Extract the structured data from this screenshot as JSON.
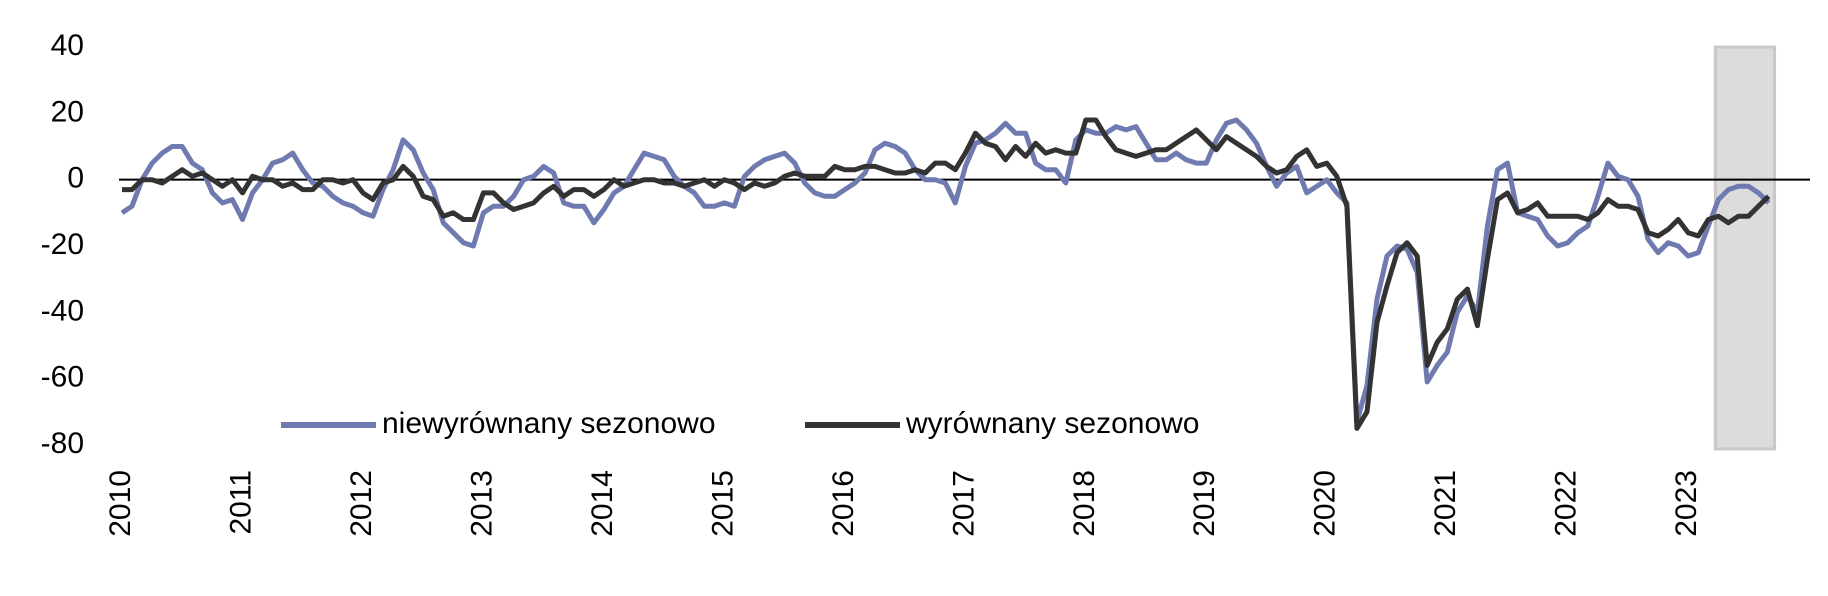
{
  "chart_data": {
    "type": "line",
    "categories": [
      "2010",
      null,
      null,
      null,
      null,
      null,
      null,
      null,
      null,
      null,
      null,
      null,
      "2011",
      null,
      null,
      null,
      null,
      null,
      null,
      null,
      null,
      null,
      null,
      null,
      "2012",
      null,
      null,
      null,
      null,
      null,
      null,
      null,
      null,
      null,
      null,
      null,
      "2013",
      null,
      null,
      null,
      null,
      null,
      null,
      null,
      null,
      null,
      null,
      null,
      "2014",
      null,
      null,
      null,
      null,
      null,
      null,
      null,
      null,
      null,
      null,
      null,
      "2015",
      null,
      null,
      null,
      null,
      null,
      null,
      null,
      null,
      null,
      null,
      null,
      "2016",
      null,
      null,
      null,
      null,
      null,
      null,
      null,
      null,
      null,
      null,
      null,
      "2017",
      null,
      null,
      null,
      null,
      null,
      null,
      null,
      null,
      null,
      null,
      null,
      "2018",
      null,
      null,
      null,
      null,
      null,
      null,
      null,
      null,
      null,
      null,
      null,
      "2019",
      null,
      null,
      null,
      null,
      null,
      null,
      null,
      null,
      null,
      null,
      null,
      "2020",
      null,
      null,
      null,
      null,
      null,
      null,
      null,
      null,
      null,
      null,
      null,
      "2021",
      null,
      null,
      null,
      null,
      null,
      null,
      null,
      null,
      null,
      null,
      null,
      "2022",
      null,
      null,
      null,
      null,
      null,
      null,
      null,
      null,
      null,
      null,
      null,
      "2023",
      null,
      null,
      null,
      null,
      null,
      null,
      null,
      null
    ],
    "series": [
      {
        "name": "niewyrównany sezonowo",
        "color": "#6f7bb0",
        "values": [
          -10,
          -8,
          0,
          5,
          8,
          10,
          10,
          5,
          3,
          -4,
          -7,
          -6,
          -12,
          -4,
          0,
          5,
          6,
          8,
          3,
          -1,
          -2,
          -5,
          -7,
          -8,
          -10,
          -11,
          -3,
          3,
          12,
          9,
          2,
          -3,
          -13,
          -16,
          -19,
          -20,
          -10,
          -8,
          -8,
          -5,
          0,
          1,
          4,
          2,
          -7,
          -8,
          -8,
          -13,
          -9,
          -4,
          -2,
          3,
          8,
          7,
          6,
          1,
          -2,
          -4,
          -8,
          -8,
          -7,
          -8,
          1,
          4,
          6,
          7,
          8,
          5,
          -1,
          -4,
          -5,
          -5,
          -3,
          -1,
          2,
          9,
          11,
          10,
          8,
          3,
          0,
          0,
          -1,
          -7,
          4,
          11,
          12,
          14,
          17,
          14,
          14,
          5,
          3,
          3,
          -1,
          12,
          15,
          14,
          14,
          16,
          15,
          16,
          11,
          6,
          6,
          8,
          6,
          5,
          5,
          12,
          17,
          18,
          15,
          11,
          4,
          -2,
          2,
          4,
          -4,
          -2,
          0,
          -4,
          -7,
          -73,
          -62,
          -36,
          -23,
          -20,
          -21,
          -28,
          -61,
          -56,
          -52,
          -40,
          -35,
          -40,
          -14,
          3,
          5,
          -10,
          -11,
          -12,
          -17,
          -20,
          -19,
          -16,
          -14,
          -5,
          5,
          1,
          0,
          -5,
          -18,
          -22,
          -19,
          -20,
          -23,
          -22,
          -14,
          -6,
          -3,
          -2,
          -2,
          -4,
          -7
        ]
      },
      {
        "name": "wyrównany sezonowo",
        "color": "#333333",
        "values": [
          -3,
          -3,
          0,
          0,
          -1,
          1,
          3,
          1,
          2,
          0,
          -2,
          0,
          -4,
          1,
          0,
          0,
          -2,
          -1,
          -3,
          -3,
          0,
          0,
          -1,
          0,
          -4,
          -6,
          -1,
          0,
          4,
          1,
          -5,
          -6,
          -11,
          -10,
          -12,
          -12,
          -4,
          -4,
          -7,
          -9,
          -8,
          -7,
          -4,
          -2,
          -5,
          -3,
          -3,
          -5,
          -3,
          0,
          -2,
          -1,
          0,
          0,
          -1,
          -1,
          -2,
          -1,
          0,
          -2,
          0,
          -1,
          -3,
          -1,
          -2,
          -1,
          1,
          2,
          1,
          1,
          1,
          4,
          3,
          3,
          4,
          4,
          3,
          2,
          2,
          3,
          2,
          5,
          5,
          3,
          8,
          14,
          11,
          10,
          6,
          10,
          7,
          11,
          8,
          9,
          8,
          8,
          18,
          18,
          13,
          9,
          8,
          7,
          8,
          9,
          9,
          11,
          13,
          15,
          12,
          9,
          13,
          11,
          9,
          7,
          4,
          2,
          3,
          7,
          9,
          4,
          5,
          1,
          -8,
          -75,
          -70,
          -43,
          -32,
          -22,
          -19,
          -23,
          -56,
          -49,
          -45,
          -36,
          -33,
          -44,
          -24,
          -6,
          -4,
          -10,
          -9,
          -7,
          -11,
          -11,
          -11,
          -11,
          -12,
          -10,
          -6,
          -8,
          -8,
          -9,
          -16,
          -17,
          -15,
          -12,
          -16,
          -17,
          -12,
          -11,
          -13,
          -11,
          -11,
          -8,
          -5
        ]
      }
    ],
    "ylim": [
      -80,
      40
    ],
    "yticks": [
      -80,
      -60,
      -40,
      -20,
      0,
      20,
      40
    ],
    "grid": false,
    "legend": "bottom-left",
    "shaded": {
      "from": 159,
      "to": 164,
      "color": "#dcdcdc"
    }
  }
}
